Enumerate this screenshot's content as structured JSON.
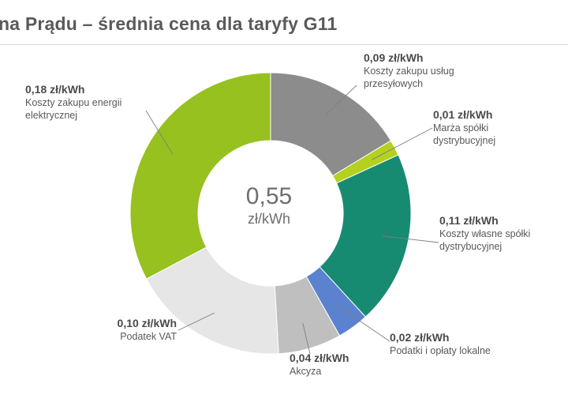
{
  "title": "na Prądu – średnia cena dla taryfy G11",
  "chart_data": {
    "type": "pie",
    "donut": true,
    "center_value": "0,55",
    "center_unit": "zł/kWh",
    "slices": [
      {
        "value_label": "0,09 zł/kWh",
        "label": "Koszty zakupu usług przesyłowych",
        "value": 0.09,
        "color": "#8c8c8c"
      },
      {
        "value_label": "0,01 zł/kWh",
        "label": "Marża spółki dystrybucyjnej",
        "value": 0.01,
        "color": "#b5d11f"
      },
      {
        "value_label": "0,11 zł/kWh",
        "label": "Koszty własne spółki dystrybucyjnej",
        "value": 0.11,
        "color": "#178b72"
      },
      {
        "value_label": "0,02 zł/kWh",
        "label": "Podatki i opłaty lokalne",
        "value": 0.02,
        "color": "#5b82cf"
      },
      {
        "value_label": "0,04 zł/kWh",
        "label": "Akcyza",
        "value": 0.04,
        "color": "#bfbfbf"
      },
      {
        "value_label": "0,10 zł/kWh",
        "label": "Podatek VAT",
        "value": 0.1,
        "color": "#e6e6e6"
      },
      {
        "value_label": "0,18 zł/kWh",
        "label": "Koszty zakupu energii elektrycznej",
        "value": 0.18,
        "color": "#96c11f"
      }
    ]
  }
}
